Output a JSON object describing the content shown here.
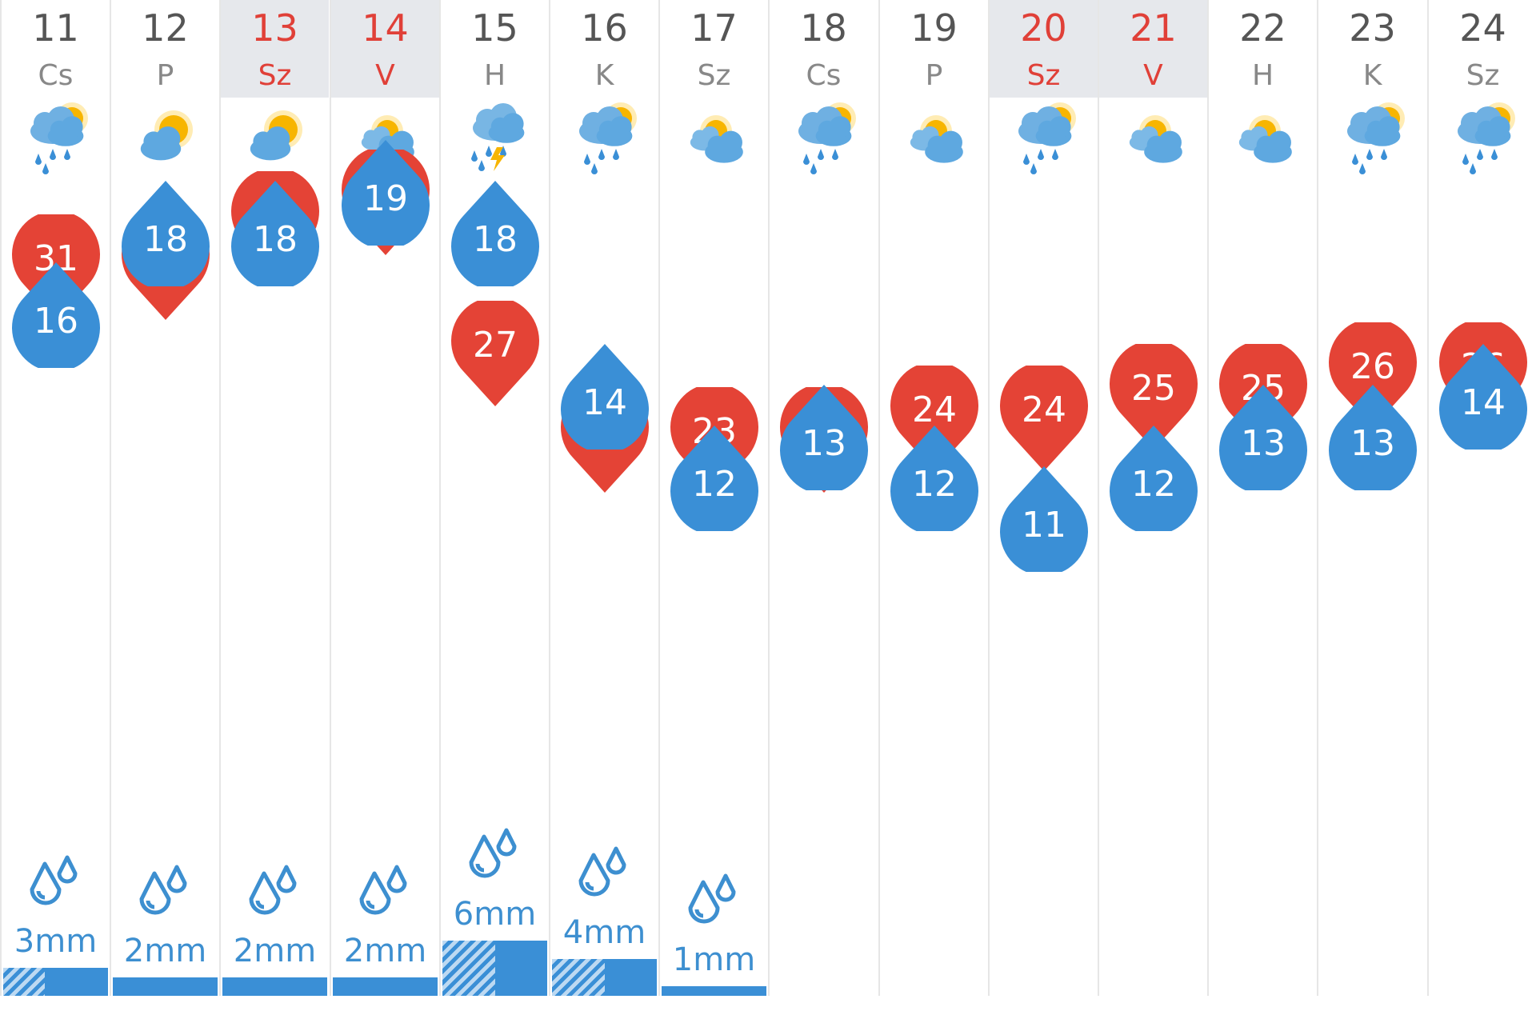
{
  "colors": {
    "high": "#e44336",
    "low": "#3a8fd6",
    "weekend_text": "#e04038",
    "weekend_bg": "#e6e8ec",
    "rain": "#3d8fd0"
  },
  "days": [
    {
      "date": "11",
      "dow": "Cs",
      "weekend": false,
      "icon": "cloud-sun-rain-icon",
      "high": "31",
      "low": "16",
      "rain": "3mm",
      "rain_mm": 3,
      "hatch_fraction": 0.4
    },
    {
      "date": "12",
      "dow": "P",
      "weekend": false,
      "icon": "sun-cloud-icon",
      "high": "31",
      "low": "18",
      "rain": "2mm",
      "rain_mm": 2,
      "hatch_fraction": 0
    },
    {
      "date": "13",
      "dow": "Sz",
      "weekend": true,
      "icon": "sun-cloud-icon",
      "high": "33",
      "low": "18",
      "rain": "2mm",
      "rain_mm": 2,
      "hatch_fraction": 0
    },
    {
      "date": "14",
      "dow": "V",
      "weekend": true,
      "icon": "partly-cloudy-icon",
      "high": "34",
      "low": "19",
      "rain": "2mm",
      "rain_mm": 2,
      "hatch_fraction": 0
    },
    {
      "date": "15",
      "dow": "H",
      "weekend": false,
      "icon": "thunderstorm-icon",
      "high": "27",
      "low": "18",
      "rain": "6mm",
      "rain_mm": 6,
      "hatch_fraction": 0.5
    },
    {
      "date": "16",
      "dow": "K",
      "weekend": false,
      "icon": "cloud-sun-rain-icon",
      "high": "23",
      "low": "14",
      "rain": "4mm",
      "rain_mm": 4,
      "hatch_fraction": 0.5
    },
    {
      "date": "17",
      "dow": "Sz",
      "weekend": false,
      "icon": "partly-cloudy-icon",
      "high": "23",
      "low": "12",
      "rain": "1mm",
      "rain_mm": 1,
      "hatch_fraction": 0
    },
    {
      "date": "18",
      "dow": "Cs",
      "weekend": false,
      "icon": "cloud-sun-rain-icon",
      "high": "23",
      "low": "13",
      "rain": "",
      "rain_mm": 0,
      "hatch_fraction": 0
    },
    {
      "date": "19",
      "dow": "P",
      "weekend": false,
      "icon": "partly-cloudy-icon",
      "high": "24",
      "low": "12",
      "rain": "",
      "rain_mm": 0,
      "hatch_fraction": 0
    },
    {
      "date": "20",
      "dow": "Sz",
      "weekend": true,
      "icon": "cloud-sun-rain-icon",
      "high": "24",
      "low": "11",
      "rain": "",
      "rain_mm": 0,
      "hatch_fraction": 0
    },
    {
      "date": "21",
      "dow": "V",
      "weekend": true,
      "icon": "partly-cloudy-icon",
      "high": "25",
      "low": "12",
      "rain": "",
      "rain_mm": 0,
      "hatch_fraction": 0
    },
    {
      "date": "22",
      "dow": "H",
      "weekend": false,
      "icon": "partly-cloudy-icon",
      "high": "25",
      "low": "13",
      "rain": "",
      "rain_mm": 0,
      "hatch_fraction": 0
    },
    {
      "date": "23",
      "dow": "K",
      "weekend": false,
      "icon": "cloud-sun-rain-icon",
      "high": "26",
      "low": "13",
      "rain": "",
      "rain_mm": 0,
      "hatch_fraction": 0
    },
    {
      "date": "24",
      "dow": "Sz",
      "weekend": false,
      "icon": "cloud-sun-rain-icon",
      "high": "26",
      "low": "14",
      "rain": "",
      "rain_mm": 0,
      "hatch_fraction": 0
    }
  ]
}
